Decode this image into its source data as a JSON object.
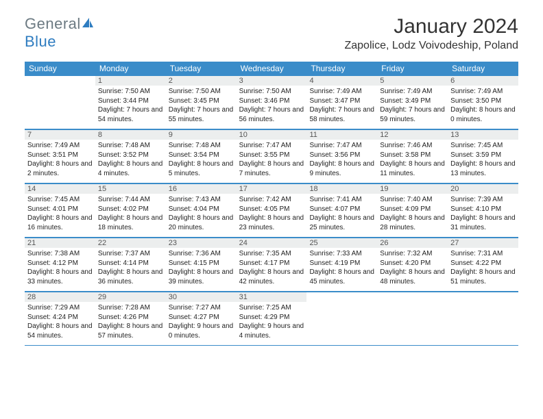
{
  "brand": {
    "part1": "General",
    "part2": "Blue"
  },
  "title": "January 2024",
  "location": "Zapolice, Lodz Voivodeship, Poland",
  "theme": {
    "header_bg": "#3a8cc9",
    "header_text": "#ffffff",
    "daynum_bg": "#eceeee",
    "daynum_text": "#555555",
    "border": "#3a8cc9",
    "body_text": "#222222",
    "page_bg": "#ffffff",
    "brand_gray": "#6c7a82",
    "brand_blue": "#2e7cc0",
    "title_color": "#333333"
  },
  "day_names": [
    "Sunday",
    "Monday",
    "Tuesday",
    "Wednesday",
    "Thursday",
    "Friday",
    "Saturday"
  ],
  "start_offset": 1,
  "days": [
    {
      "n": "1",
      "sr": "Sunrise: 7:50 AM",
      "ss": "Sunset: 3:44 PM",
      "dl": "Daylight: 7 hours and 54 minutes."
    },
    {
      "n": "2",
      "sr": "Sunrise: 7:50 AM",
      "ss": "Sunset: 3:45 PM",
      "dl": "Daylight: 7 hours and 55 minutes."
    },
    {
      "n": "3",
      "sr": "Sunrise: 7:50 AM",
      "ss": "Sunset: 3:46 PM",
      "dl": "Daylight: 7 hours and 56 minutes."
    },
    {
      "n": "4",
      "sr": "Sunrise: 7:49 AM",
      "ss": "Sunset: 3:47 PM",
      "dl": "Daylight: 7 hours and 58 minutes."
    },
    {
      "n": "5",
      "sr": "Sunrise: 7:49 AM",
      "ss": "Sunset: 3:49 PM",
      "dl": "Daylight: 7 hours and 59 minutes."
    },
    {
      "n": "6",
      "sr": "Sunrise: 7:49 AM",
      "ss": "Sunset: 3:50 PM",
      "dl": "Daylight: 8 hours and 0 minutes."
    },
    {
      "n": "7",
      "sr": "Sunrise: 7:49 AM",
      "ss": "Sunset: 3:51 PM",
      "dl": "Daylight: 8 hours and 2 minutes."
    },
    {
      "n": "8",
      "sr": "Sunrise: 7:48 AM",
      "ss": "Sunset: 3:52 PM",
      "dl": "Daylight: 8 hours and 4 minutes."
    },
    {
      "n": "9",
      "sr": "Sunrise: 7:48 AM",
      "ss": "Sunset: 3:54 PM",
      "dl": "Daylight: 8 hours and 5 minutes."
    },
    {
      "n": "10",
      "sr": "Sunrise: 7:47 AM",
      "ss": "Sunset: 3:55 PM",
      "dl": "Daylight: 8 hours and 7 minutes."
    },
    {
      "n": "11",
      "sr": "Sunrise: 7:47 AM",
      "ss": "Sunset: 3:56 PM",
      "dl": "Daylight: 8 hours and 9 minutes."
    },
    {
      "n": "12",
      "sr": "Sunrise: 7:46 AM",
      "ss": "Sunset: 3:58 PM",
      "dl": "Daylight: 8 hours and 11 minutes."
    },
    {
      "n": "13",
      "sr": "Sunrise: 7:45 AM",
      "ss": "Sunset: 3:59 PM",
      "dl": "Daylight: 8 hours and 13 minutes."
    },
    {
      "n": "14",
      "sr": "Sunrise: 7:45 AM",
      "ss": "Sunset: 4:01 PM",
      "dl": "Daylight: 8 hours and 16 minutes."
    },
    {
      "n": "15",
      "sr": "Sunrise: 7:44 AM",
      "ss": "Sunset: 4:02 PM",
      "dl": "Daylight: 8 hours and 18 minutes."
    },
    {
      "n": "16",
      "sr": "Sunrise: 7:43 AM",
      "ss": "Sunset: 4:04 PM",
      "dl": "Daylight: 8 hours and 20 minutes."
    },
    {
      "n": "17",
      "sr": "Sunrise: 7:42 AM",
      "ss": "Sunset: 4:05 PM",
      "dl": "Daylight: 8 hours and 23 minutes."
    },
    {
      "n": "18",
      "sr": "Sunrise: 7:41 AM",
      "ss": "Sunset: 4:07 PM",
      "dl": "Daylight: 8 hours and 25 minutes."
    },
    {
      "n": "19",
      "sr": "Sunrise: 7:40 AM",
      "ss": "Sunset: 4:09 PM",
      "dl": "Daylight: 8 hours and 28 minutes."
    },
    {
      "n": "20",
      "sr": "Sunrise: 7:39 AM",
      "ss": "Sunset: 4:10 PM",
      "dl": "Daylight: 8 hours and 31 minutes."
    },
    {
      "n": "21",
      "sr": "Sunrise: 7:38 AM",
      "ss": "Sunset: 4:12 PM",
      "dl": "Daylight: 8 hours and 33 minutes."
    },
    {
      "n": "22",
      "sr": "Sunrise: 7:37 AM",
      "ss": "Sunset: 4:14 PM",
      "dl": "Daylight: 8 hours and 36 minutes."
    },
    {
      "n": "23",
      "sr": "Sunrise: 7:36 AM",
      "ss": "Sunset: 4:15 PM",
      "dl": "Daylight: 8 hours and 39 minutes."
    },
    {
      "n": "24",
      "sr": "Sunrise: 7:35 AM",
      "ss": "Sunset: 4:17 PM",
      "dl": "Daylight: 8 hours and 42 minutes."
    },
    {
      "n": "25",
      "sr": "Sunrise: 7:33 AM",
      "ss": "Sunset: 4:19 PM",
      "dl": "Daylight: 8 hours and 45 minutes."
    },
    {
      "n": "26",
      "sr": "Sunrise: 7:32 AM",
      "ss": "Sunset: 4:20 PM",
      "dl": "Daylight: 8 hours and 48 minutes."
    },
    {
      "n": "27",
      "sr": "Sunrise: 7:31 AM",
      "ss": "Sunset: 4:22 PM",
      "dl": "Daylight: 8 hours and 51 minutes."
    },
    {
      "n": "28",
      "sr": "Sunrise: 7:29 AM",
      "ss": "Sunset: 4:24 PM",
      "dl": "Daylight: 8 hours and 54 minutes."
    },
    {
      "n": "29",
      "sr": "Sunrise: 7:28 AM",
      "ss": "Sunset: 4:26 PM",
      "dl": "Daylight: 8 hours and 57 minutes."
    },
    {
      "n": "30",
      "sr": "Sunrise: 7:27 AM",
      "ss": "Sunset: 4:27 PM",
      "dl": "Daylight: 9 hours and 0 minutes."
    },
    {
      "n": "31",
      "sr": "Sunrise: 7:25 AM",
      "ss": "Sunset: 4:29 PM",
      "dl": "Daylight: 9 hours and 4 minutes."
    }
  ]
}
